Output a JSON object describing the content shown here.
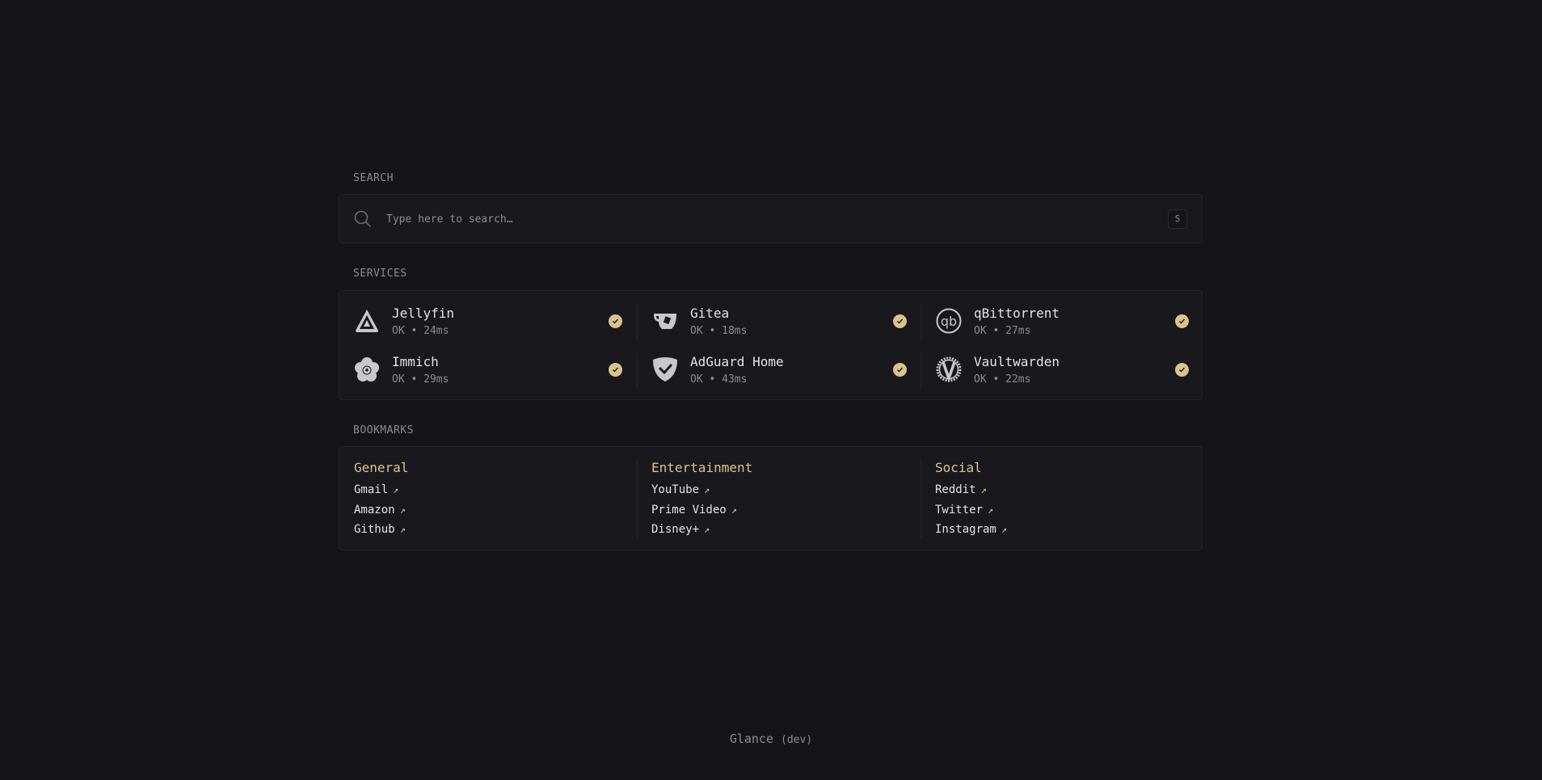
{
  "search": {
    "label": "SEARCH",
    "placeholder": "Type here to search…",
    "shortcut": "S"
  },
  "services": {
    "label": "SERVICES",
    "items": [
      {
        "name": "Jellyfin",
        "status": "OK • 24ms",
        "icon": "jellyfin-icon"
      },
      {
        "name": "Gitea",
        "status": "OK • 18ms",
        "icon": "gitea-icon"
      },
      {
        "name": "qBittorrent",
        "status": "OK • 27ms",
        "icon": "qbittorrent-icon"
      },
      {
        "name": "Immich",
        "status": "OK • 29ms",
        "icon": "immich-icon"
      },
      {
        "name": "AdGuard Home",
        "status": "OK • 43ms",
        "icon": "adguard-icon"
      },
      {
        "name": "Vaultwarden",
        "status": "OK • 22ms",
        "icon": "vaultwarden-icon"
      }
    ]
  },
  "bookmarks": {
    "label": "BOOKMARKS",
    "groups": [
      {
        "title": "General",
        "links": [
          "Gmail",
          "Amazon",
          "Github"
        ]
      },
      {
        "title": "Entertainment",
        "links": [
          "YouTube",
          "Prime Video",
          "Disney+"
        ]
      },
      {
        "title": "Social",
        "links": [
          "Reddit",
          "Twitter",
          "Instagram"
        ]
      }
    ]
  },
  "footer": {
    "app": "Glance",
    "version": "(dev)"
  },
  "colors": {
    "accent": "#d8c58c",
    "background": "#151519",
    "card": "#18181d"
  }
}
